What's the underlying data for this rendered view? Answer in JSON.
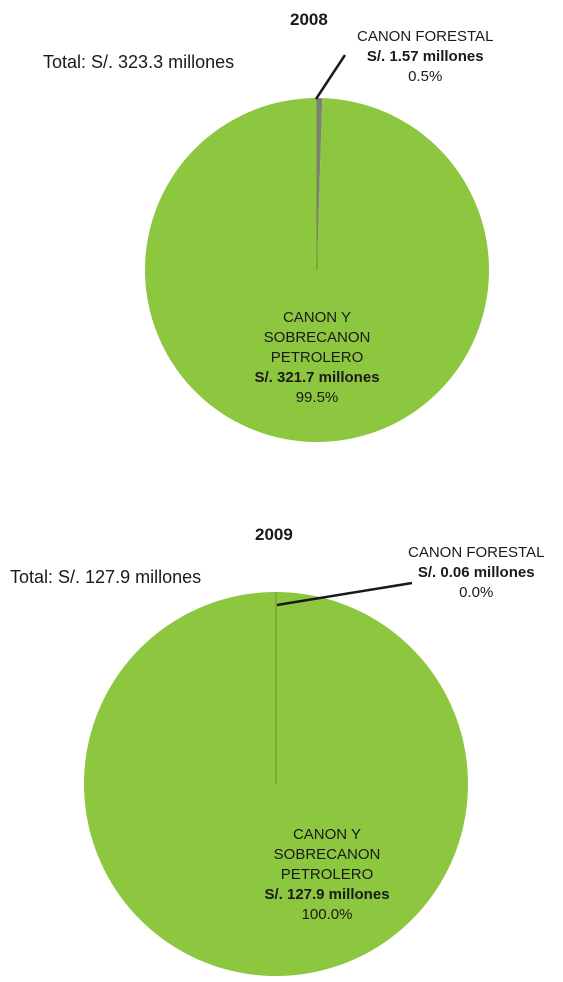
{
  "charts": [
    {
      "title": "2008",
      "total": "Total: S/. 323.3 millones",
      "slices": [
        {
          "name": "CANON FORESTAL",
          "amount": "S/. 1.57 millones",
          "percent": "0.5%",
          "value": 1.57,
          "color": "#7f7f7f"
        },
        {
          "name_lines": [
            "CANON Y",
            "SOBRECANON",
            "PETROLERO"
          ],
          "amount": "S/. 321.7 millones",
          "percent": "99.5%",
          "value": 321.7,
          "color": "#8dc63f"
        }
      ]
    },
    {
      "title": "2009",
      "total": "Total: S/. 127.9 millones",
      "slices": [
        {
          "name": "CANON FORESTAL",
          "amount": "S/. 0.06 millones",
          "percent": "0.0%",
          "value": 0.06,
          "color": "#7f7f7f"
        },
        {
          "name_lines": [
            "CANON Y",
            "SOBRECANON",
            "PETROLERO"
          ],
          "amount": "S/. 127.9 millones",
          "percent": "100.0%",
          "value": 127.9,
          "color": "#8dc63f"
        }
      ]
    }
  ],
  "chart_data": [
    {
      "type": "pie",
      "title": "2008",
      "categories": [
        "CANON FORESTAL",
        "CANON Y SOBRECANON PETROLERO"
      ],
      "values": [
        1.57,
        321.7
      ],
      "percent": [
        0.5,
        99.5
      ],
      "colors": [
        "#7f7f7f",
        "#8dc63f"
      ]
    },
    {
      "type": "pie",
      "title": "2009",
      "categories": [
        "CANON FORESTAL",
        "CANON Y SOBRECANON PETROLERO"
      ],
      "values": [
        0.06,
        127.9
      ],
      "percent": [
        0.0,
        100.0
      ],
      "colors": [
        "#7f7f7f",
        "#8dc63f"
      ]
    }
  ]
}
